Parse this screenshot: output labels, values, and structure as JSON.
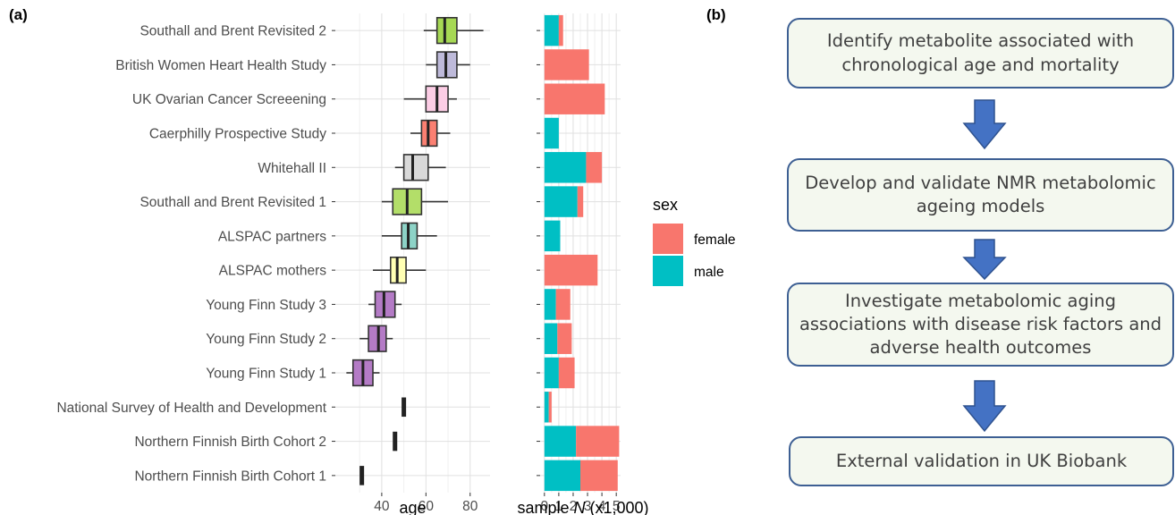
{
  "panel_a_label": "(a)",
  "panel_b_label": "(b)",
  "colors": {
    "female": "#F8766D",
    "male": "#00BFC4",
    "grid_major": "#E0E0E0",
    "grid_minor": "#F0F0F0",
    "box_border": "#3d5f93",
    "box_fill": "#f4f8ef",
    "arrow": "#4472C4"
  },
  "chart_data": [
    {
      "type": "boxplot",
      "xlabel": "age",
      "xlim": [
        19,
        89
      ],
      "xticks": [
        40,
        60,
        80
      ],
      "grid": true,
      "categories": [
        "Southall and Brent Revisited 2",
        "British Women Heart Health Study",
        "UK Ovarian Cancer Screeening",
        "Caerphilly Prospective Study",
        "Whitehall II",
        "Southall and Brent Revisited 1",
        "ALSPAC partners",
        "ALSPAC mothers",
        "Young Finn Study 3",
        "Young Finn Study 2",
        "Young Finn Study 1",
        "National Survey of Health and Development",
        "Northern Finnish Birth Cohort 2",
        "Northern Finnish Birth Cohort 1"
      ],
      "boxes": [
        {
          "min": 59,
          "q1": 65,
          "median": 68.5,
          "q3": 74,
          "max": 86,
          "color": "#A6D854"
        },
        {
          "min": 60,
          "q1": 65,
          "median": 69,
          "q3": 74,
          "max": 80,
          "color": "#BEBADA"
        },
        {
          "min": 50,
          "q1": 60,
          "median": 65,
          "q3": 70,
          "max": 74,
          "color": "#FCCDE5"
        },
        {
          "min": 53,
          "q1": 58,
          "median": 61,
          "q3": 65,
          "max": 71,
          "color": "#FB8072"
        },
        {
          "min": 46,
          "q1": 50,
          "median": 54,
          "q3": 61,
          "max": 69,
          "color": "#D9D9D9"
        },
        {
          "min": 40,
          "q1": 45,
          "median": 51.5,
          "q3": 58,
          "max": 70,
          "color": "#B3DE69"
        },
        {
          "min": 40,
          "q1": 49,
          "median": 52,
          "q3": 56,
          "max": 65,
          "color": "#8DD3C7"
        },
        {
          "min": 36,
          "q1": 44,
          "median": 47,
          "q3": 51,
          "max": 60,
          "color": "#FFFFB3"
        },
        {
          "min": 34,
          "q1": 37,
          "median": 41,
          "q3": 46,
          "max": 49,
          "color": "#B47BC6"
        },
        {
          "min": 30,
          "q1": 34,
          "median": 38.5,
          "q3": 42,
          "max": 45,
          "color": "#B47BC6"
        },
        {
          "min": 24,
          "q1": 27,
          "median": 31.5,
          "q3": 36,
          "max": 39,
          "color": "#B47BC6"
        },
        {
          "min": 50,
          "q1": 50,
          "median": 50,
          "q3": 50,
          "max": 50,
          "color": "#222222"
        },
        {
          "min": 46,
          "q1": 46,
          "median": 46,
          "q3": 46,
          "max": 46,
          "color": "#222222"
        },
        {
          "min": 31,
          "q1": 31,
          "median": 31,
          "q3": 31,
          "max": 31,
          "color": "#222222"
        }
      ]
    },
    {
      "type": "bar",
      "stacked": true,
      "orientation": "horizontal",
      "xlabel_prefix": "sample ",
      "xlabel_italic": "N",
      "xlabel_suffix": " (x1,000)",
      "xlim": [
        -0.3,
        5.3
      ],
      "xticks": [
        0,
        1,
        2,
        3,
        4,
        5
      ],
      "legend_title": "sex",
      "legend_position": "right",
      "series": [
        {
          "name": "male",
          "values": [
            1.0,
            0,
            0,
            1.0,
            2.9,
            2.3,
            1.1,
            0,
            0.8,
            0.9,
            1.0,
            0.3,
            2.2,
            2.5
          ]
        },
        {
          "name": "female",
          "values": [
            0.3,
            3.1,
            4.2,
            0,
            1.1,
            0.4,
            0,
            3.7,
            1.0,
            1.0,
            1.1,
            0.2,
            3.0,
            2.6
          ]
        }
      ]
    }
  ],
  "flow": {
    "steps": [
      "Identify metabolite associated with chronological age and mortality",
      "Develop and validate NMR metabolomic ageing models",
      "Investigate metabolomic aging associations with disease risk factors and adverse health outcomes",
      "External validation in UK Biobank"
    ]
  }
}
